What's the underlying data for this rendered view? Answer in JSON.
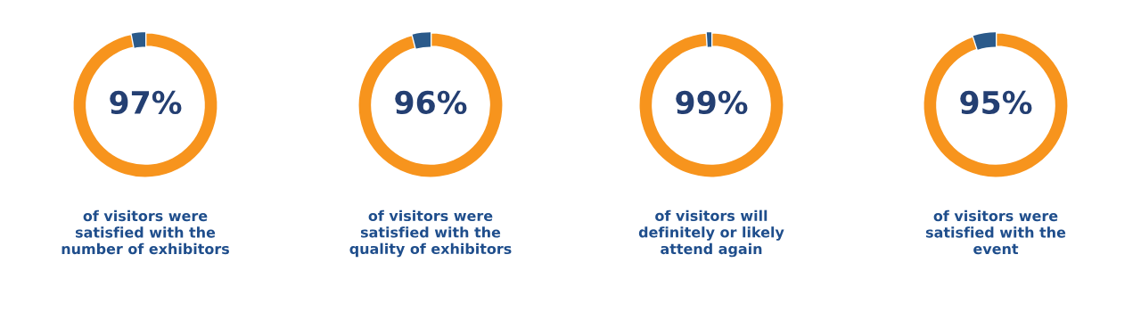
{
  "chart_data": [
    {
      "type": "donut",
      "categories": [
        null,
        null
      ],
      "values": [
        97,
        3
      ],
      "colors": [
        "#f7941d",
        "#2b5a8a"
      ],
      "value_labels": [
        "97%",
        null
      ],
      "annotations": [
        "of visitors were\nsatisfied with the\nnumber of exhibitors"
      ]
    },
    {
      "type": "donut",
      "categories": [
        null,
        null
      ],
      "values": [
        96,
        4
      ],
      "colors": [
        "#f7941d",
        "#2b5a8a"
      ],
      "value_labels": [
        "96%",
        null
      ],
      "annotations": [
        "of visitors were\nsatisfied with the\nquality of exhibitors"
      ]
    },
    {
      "type": "donut",
      "categories": [
        null,
        null
      ],
      "values": [
        99,
        1
      ],
      "colors": [
        "#f7941d",
        "#2b5a8a"
      ],
      "value_labels": [
        "99%",
        null
      ],
      "annotations": [
        "of visitors will\ndefinitely or likely\nattend again"
      ]
    },
    {
      "type": "donut",
      "categories": [
        null,
        null
      ],
      "values": [
        95,
        5
      ],
      "colors": [
        "#f7941d",
        "#2b5a8a"
      ],
      "value_labels": [
        "95%",
        null
      ],
      "annotations": [
        "of visitors were\nsatisfied with the\nevent"
      ]
    }
  ]
}
